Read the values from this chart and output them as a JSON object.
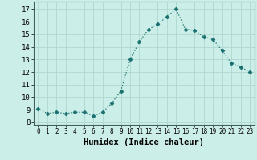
{
  "x": [
    0,
    1,
    2,
    3,
    4,
    5,
    6,
    7,
    8,
    9,
    10,
    11,
    12,
    13,
    14,
    15,
    16,
    17,
    18,
    19,
    20,
    21,
    22,
    23
  ],
  "y": [
    9.1,
    8.7,
    8.8,
    8.7,
    8.8,
    8.8,
    8.5,
    8.8,
    9.5,
    10.5,
    13.0,
    14.4,
    15.4,
    15.8,
    16.4,
    17.0,
    15.4,
    15.3,
    14.8,
    14.6,
    13.7,
    12.7,
    12.4,
    12.0
  ],
  "line_color": "#1a7070",
  "marker": "D",
  "marker_size": 2.5,
  "bg_color": "#cceee8",
  "grid_color": "#b0d8d0",
  "xlabel": "Humidex (Indice chaleur)",
  "xlabel_fontsize": 7.5,
  "ylabel_fontsize": 7,
  "ylim": [
    7.8,
    17.6
  ],
  "xlim": [
    -0.5,
    23.5
  ],
  "yticks": [
    8,
    9,
    10,
    11,
    12,
    13,
    14,
    15,
    16,
    17
  ],
  "xticks": [
    0,
    1,
    2,
    3,
    4,
    5,
    6,
    7,
    8,
    9,
    10,
    11,
    12,
    13,
    14,
    15,
    16,
    17,
    18,
    19,
    20,
    21,
    22,
    23
  ],
  "xtick_labels": [
    "0",
    "1",
    "2",
    "3",
    "4",
    "5",
    "6",
    "7",
    "8",
    "9",
    "10",
    "11",
    "12",
    "13",
    "14",
    "15",
    "16",
    "17",
    "18",
    "19",
    "20",
    "21",
    "22",
    "23"
  ]
}
